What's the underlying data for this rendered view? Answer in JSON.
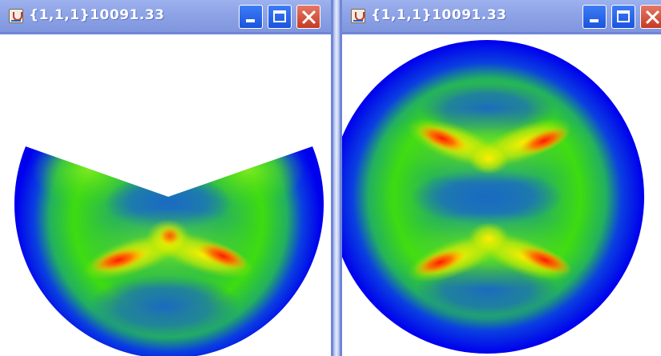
{
  "windows": [
    {
      "title": "{1,1,1}10091.33"
    },
    {
      "title": "{1,1,1}10091.33"
    }
  ],
  "colors": {
    "titlebar": "#8ea3e6",
    "min_max_button": "#2a62e8",
    "close_button": "#d9533c",
    "map_outer": "#0000ee",
    "map_mid": "#1a70c0",
    "map_green": "#3ddc10",
    "map_yellow": "#ffee00",
    "map_red": "#ff1a00"
  }
}
